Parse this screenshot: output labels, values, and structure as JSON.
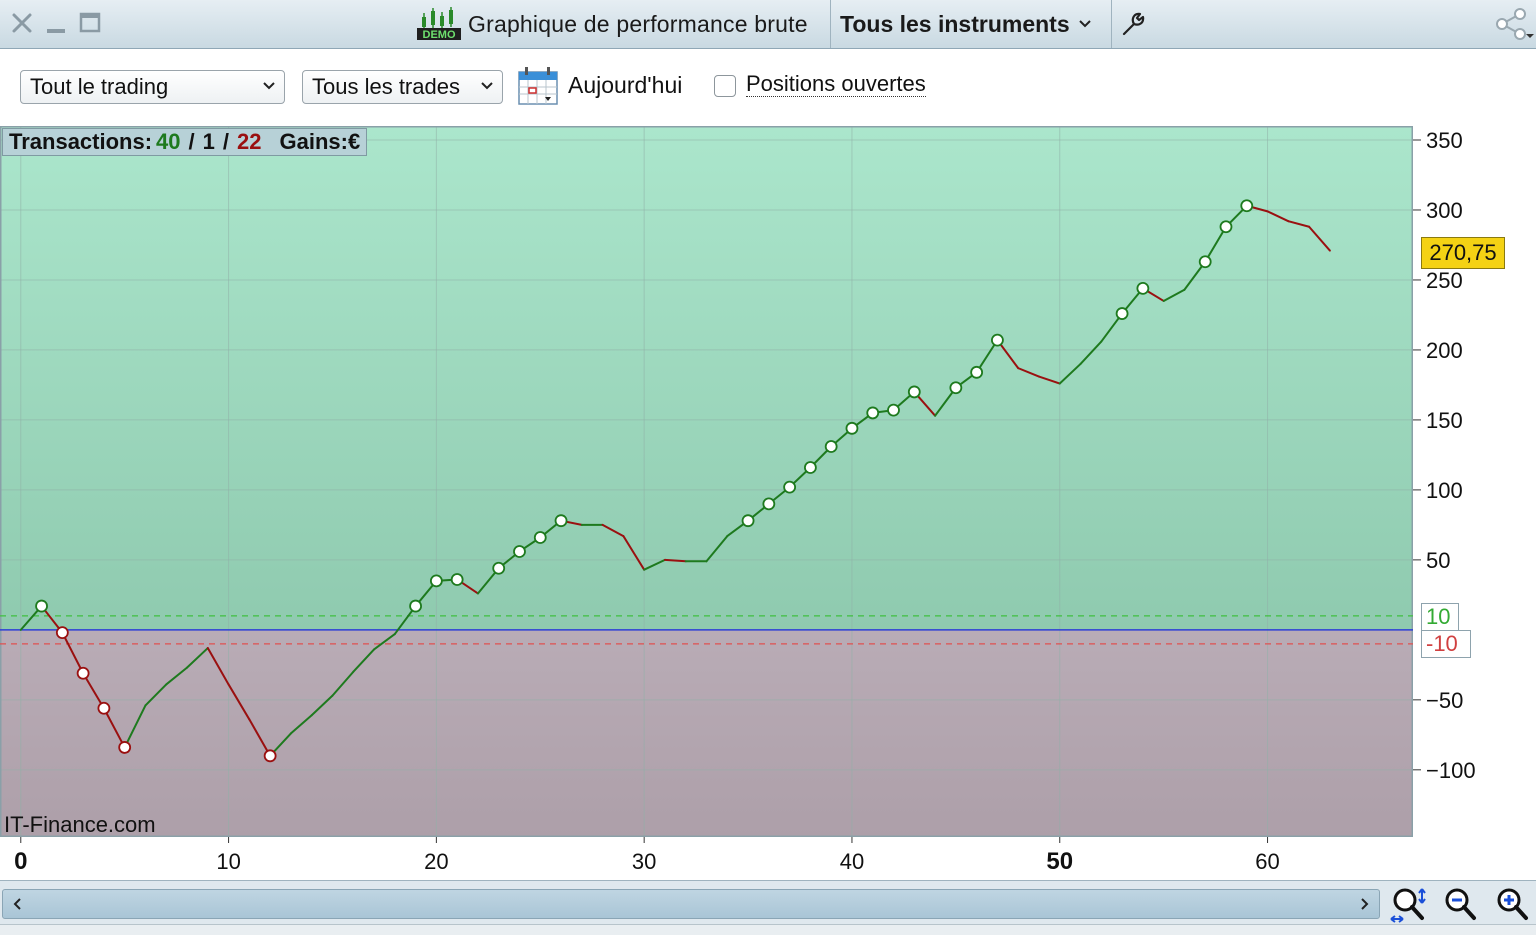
{
  "window": {
    "title": "Graphique de performance brute",
    "demo_badge": "DEMO",
    "instrument_selector": "Tous les instruments"
  },
  "toolbar": {
    "trading_select": "Tout le trading",
    "trades_select": "Tous les trades",
    "today_label": "Aujourd'hui",
    "open_positions_label": "Positions ouvertes",
    "open_positions_checked": false
  },
  "overlay": {
    "transactions_label": "Transactions:",
    "wins": "40",
    "neutral": "1",
    "losses": "22",
    "sep": "/",
    "gains_label": "Gains:",
    "currency": "€"
  },
  "watermark": "IT-Finance.com",
  "current_value_label": "270,75",
  "level_pos_label": "10",
  "level_neg_label": "-10",
  "colors": {
    "gain_line": "#1e7a1e",
    "loss_line": "#9a1010",
    "positive_zone": "#9fd9bd",
    "negative_zone": "#b3a6af",
    "zero_line": "#2d3fd6",
    "price_tag": "#f4d214"
  },
  "chart_data": {
    "type": "line",
    "xlim": [
      -1,
      67
    ],
    "ylim": [
      -148,
      360
    ],
    "x_ticks": [
      "0",
      "10",
      "20",
      "30",
      "40",
      "50",
      "60"
    ],
    "y_ticks": [
      "350",
      "300",
      "250",
      "200",
      "150",
      "100",
      "50",
      "-50",
      "-100"
    ],
    "zero_level": 0,
    "upper_level": 10,
    "lower_level": -10,
    "last_value": 270.75,
    "points": [
      {
        "x": 0,
        "y": 0
      },
      {
        "x": 1,
        "y": 17,
        "m": "g"
      },
      {
        "x": 2,
        "y": -2,
        "m": "l"
      },
      {
        "x": 3,
        "y": -31,
        "m": "l"
      },
      {
        "x": 4,
        "y": -56,
        "m": "l"
      },
      {
        "x": 5,
        "y": -84,
        "m": "l"
      },
      {
        "x": 6,
        "y": -54
      },
      {
        "x": 7,
        "y": -39
      },
      {
        "x": 8,
        "y": -27
      },
      {
        "x": 9,
        "y": -13
      },
      {
        "x": 10,
        "y": -39
      },
      {
        "x": 11,
        "y": -64
      },
      {
        "x": 12,
        "y": -90,
        "m": "l"
      },
      {
        "x": 13,
        "y": -74
      },
      {
        "x": 14,
        "y": -61
      },
      {
        "x": 15,
        "y": -47
      },
      {
        "x": 16,
        "y": -30
      },
      {
        "x": 17,
        "y": -14
      },
      {
        "x": 18,
        "y": -3
      },
      {
        "x": 19,
        "y": 17,
        "m": "g"
      },
      {
        "x": 20,
        "y": 35,
        "m": "g"
      },
      {
        "x": 21,
        "y": 36,
        "m": "g"
      },
      {
        "x": 22,
        "y": 26
      },
      {
        "x": 23,
        "y": 44,
        "m": "g"
      },
      {
        "x": 24,
        "y": 56,
        "m": "g"
      },
      {
        "x": 25,
        "y": 66,
        "m": "g"
      },
      {
        "x": 26,
        "y": 78,
        "m": "g"
      },
      {
        "x": 27,
        "y": 75
      },
      {
        "x": 28,
        "y": 75
      },
      {
        "x": 29,
        "y": 67
      },
      {
        "x": 30,
        "y": 43
      },
      {
        "x": 31,
        "y": 50
      },
      {
        "x": 32,
        "y": 49
      },
      {
        "x": 33,
        "y": 49
      },
      {
        "x": 34,
        "y": 67
      },
      {
        "x": 35,
        "y": 78,
        "m": "g"
      },
      {
        "x": 36,
        "y": 90,
        "m": "g"
      },
      {
        "x": 37,
        "y": 102,
        "m": "g"
      },
      {
        "x": 38,
        "y": 116,
        "m": "g"
      },
      {
        "x": 39,
        "y": 131,
        "m": "g"
      },
      {
        "x": 40,
        "y": 144,
        "m": "g"
      },
      {
        "x": 41,
        "y": 155,
        "m": "g"
      },
      {
        "x": 42,
        "y": 157,
        "m": "g"
      },
      {
        "x": 43,
        "y": 170,
        "m": "g"
      },
      {
        "x": 44,
        "y": 153
      },
      {
        "x": 45,
        "y": 173,
        "m": "g"
      },
      {
        "x": 46,
        "y": 184,
        "m": "g"
      },
      {
        "x": 47,
        "y": 207,
        "m": "g"
      },
      {
        "x": 48,
        "y": 187
      },
      {
        "x": 49,
        "y": 181
      },
      {
        "x": 50,
        "y": 176
      },
      {
        "x": 51,
        "y": 190
      },
      {
        "x": 52,
        "y": 206
      },
      {
        "x": 53,
        "y": 226,
        "m": "g"
      },
      {
        "x": 54,
        "y": 244,
        "m": "g"
      },
      {
        "x": 55,
        "y": 235
      },
      {
        "x": 56,
        "y": 243
      },
      {
        "x": 57,
        "y": 263,
        "m": "g"
      },
      {
        "x": 58,
        "y": 288,
        "m": "g"
      },
      {
        "x": 59,
        "y": 303,
        "m": "g"
      },
      {
        "x": 60,
        "y": 299
      },
      {
        "x": 61,
        "y": 292
      },
      {
        "x": 62,
        "y": 288
      },
      {
        "x": 63,
        "y": 271
      }
    ]
  }
}
